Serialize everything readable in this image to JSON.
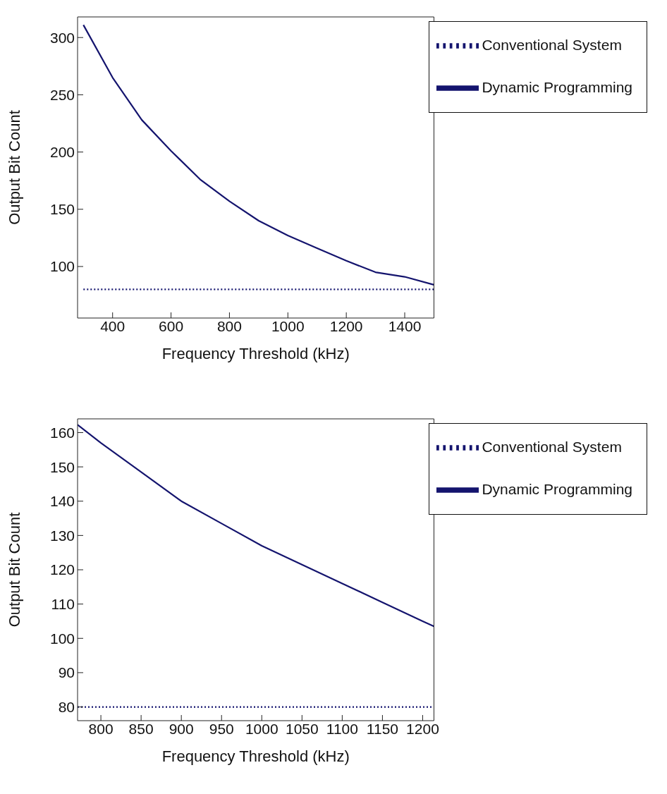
{
  "chart_data": [
    {
      "type": "line",
      "xlabel": "Frequency Threshold (kHz)",
      "ylabel": "Output Bit Count",
      "xlim": [
        280,
        1500
      ],
      "ylim": [
        55,
        318
      ],
      "xticks": [
        400,
        600,
        800,
        1000,
        1200,
        1400
      ],
      "yticks": [
        100,
        150,
        200,
        250,
        300
      ],
      "legend": "top right",
      "grid": false,
      "marker": "none",
      "series": [
        {
          "name": "Dynamic Programming",
          "color": "#14146e",
          "line_style": "solid",
          "x": [
            300,
            400,
            500,
            600,
            700,
            800,
            900,
            1000,
            1100,
            1200,
            1300,
            1400,
            1500
          ],
          "values": [
            311,
            265,
            228,
            201,
            176,
            157,
            140,
            127,
            116,
            105,
            95,
            91,
            84
          ]
        },
        {
          "name": "Conventional System",
          "color": "#14146e",
          "line_style": "dotted",
          "x": [
            300,
            1500
          ],
          "values": [
            80,
            80
          ]
        }
      ]
    },
    {
      "type": "line",
      "xlabel": "Frequency Threshold (kHz)",
      "ylabel": "Output Bit Count",
      "xlim": [
        771,
        1214
      ],
      "ylim": [
        76,
        164
      ],
      "xticks": [
        800,
        850,
        900,
        950,
        1000,
        1050,
        1100,
        1150,
        1200
      ],
      "yticks": [
        80,
        90,
        100,
        110,
        120,
        130,
        140,
        150,
        160
      ],
      "legend": "top right",
      "grid": false,
      "marker": "none",
      "series": [
        {
          "name": "Dynamic Programming",
          "color": "#14146e",
          "line_style": "solid",
          "x": [
            771,
            800,
            850,
            900,
            950,
            1000,
            1050,
            1100,
            1150,
            1200,
            1214
          ],
          "values": [
            162.3,
            157,
            148.5,
            140,
            133.5,
            127,
            121.5,
            116,
            110.5,
            105,
            103.5
          ]
        },
        {
          "name": "Conventional System",
          "color": "#14146e",
          "line_style": "dotted",
          "x": [
            771,
            1214
          ],
          "values": [
            80,
            80
          ]
        }
      ]
    }
  ]
}
